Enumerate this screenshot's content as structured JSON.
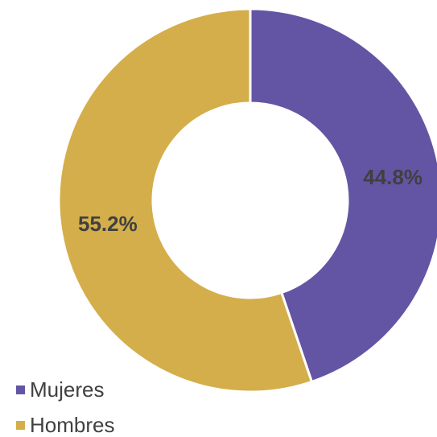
{
  "chart_data": {
    "type": "pie",
    "donut": true,
    "categories": [
      "Mujeres",
      "Hombres"
    ],
    "values": [
      44.8,
      55.2
    ],
    "labels": [
      "44.8%",
      "55.2%"
    ],
    "colors": [
      "#6355A4",
      "#D4AE4A"
    ],
    "title": "",
    "legend_placement": "bottom-left"
  },
  "legend": {
    "items": [
      {
        "label": "Mujeres",
        "color": "#6355A4"
      },
      {
        "label": "Hombres",
        "color": "#D4AE4A"
      }
    ]
  }
}
